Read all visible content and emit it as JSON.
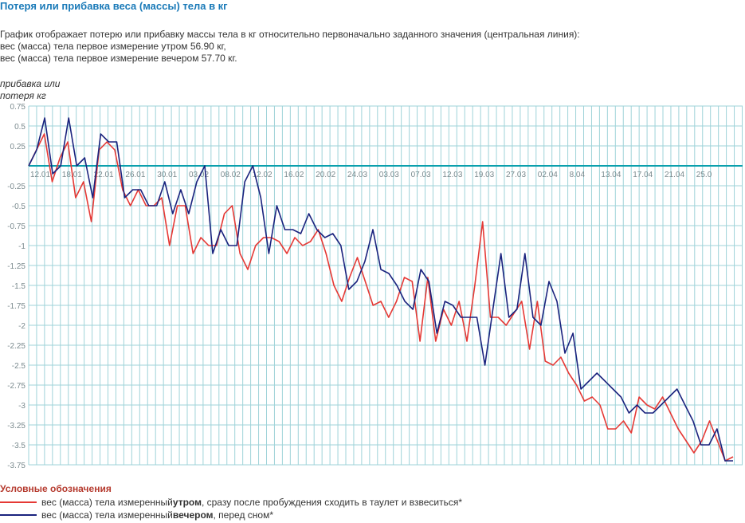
{
  "header": {
    "title": "Потеря или прибавка веса (массы) тела в кг",
    "description": [
      "График отображает потерю или прибавку массы тела в кг относительно первоначально заданного значения (центральная линия):",
      "вес (масса) тела первое измерение утром 56.90 кг,",
      "вес (масса) тела первое измерение вечером 57.70 кг."
    ],
    "y_axis_label_line1": "прибавка или",
    "y_axis_label_line2": "потеря кг"
  },
  "legend": {
    "title": "Условные обозначения",
    "morning": {
      "pre": "вес (масса) тела измеренный ",
      "bold": "утром",
      "post": ", сразу после пробуждения сходить в таулет и взвеситься*",
      "color": "#e53935"
    },
    "evening": {
      "pre": "вес (масса) тела измеренный ",
      "bold": "вечером",
      "post": ", перед сном*",
      "color": "#1a237e"
    }
  },
  "chart_data": {
    "type": "line",
    "ylim": [
      -3.75,
      0.75
    ],
    "y_ticks": [
      "0.75",
      "0.5",
      "0.25",
      "",
      "-0.25",
      "-0.5",
      "-0.75",
      "-1",
      "-1.25",
      "-1.5",
      "-1.75",
      "-2",
      "-2.25",
      "-2.5",
      "-2.75",
      "-3",
      "-3.25",
      "-3.5",
      "-3.75"
    ],
    "x_ticks": [
      "12.01",
      "18.01",
      "22.01",
      "26.01",
      "30.01",
      "03.02",
      "08.02",
      "12.02",
      "16.02",
      "20.02",
      "24.03",
      "03.03",
      "07.03",
      "12.03",
      "19.03",
      "27.03",
      "02.04",
      "8.04",
      "13.04",
      "17.04",
      "21.04",
      "25.0"
    ],
    "grid": true,
    "colors": {
      "grid": "#9fd3d9",
      "zero_line": "#0aa0ad",
      "axis_text": "#7a8a8e"
    },
    "series": [
      {
        "name": "утром",
        "color": "#e53935",
        "values": [
          0,
          0.2,
          0.4,
          -0.2,
          0.1,
          0.3,
          -0.4,
          -0.2,
          -0.7,
          0.2,
          0.3,
          0.2,
          -0.3,
          -0.5,
          -0.3,
          -0.5,
          -0.5,
          -0.4,
          -1.0,
          -0.5,
          -0.5,
          -1.1,
          -0.9,
          -1.0,
          -1.0,
          -0.6,
          -0.5,
          -1.1,
          -1.3,
          -1.0,
          -0.9,
          -0.9,
          -0.95,
          -1.1,
          -0.9,
          -1.0,
          -0.95,
          -0.8,
          -1.1,
          -1.5,
          -1.7,
          -1.4,
          -1.15,
          -1.45,
          -1.75,
          -1.7,
          -1.9,
          -1.7,
          -1.4,
          -1.45,
          -2.2,
          -1.4,
          -2.2,
          -1.8,
          -2.0,
          -1.7,
          -2.2,
          -1.5,
          -0.7,
          -1.9,
          -1.9,
          -2.0,
          -1.85,
          -1.7,
          -2.3,
          -1.7,
          -2.45,
          -2.5,
          -2.4,
          -2.6,
          -2.75,
          -2.95,
          -2.9,
          -3.0,
          -3.3,
          -3.3,
          -3.2,
          -3.35,
          -2.9,
          -3.0,
          -3.05,
          -2.9,
          -3.1,
          -3.3,
          -3.45,
          -3.6,
          -3.45,
          -3.2,
          -3.45,
          -3.7,
          -3.65
        ]
      },
      {
        "name": "вечером",
        "color": "#1a237e",
        "values": [
          0,
          0.2,
          0.6,
          -0.1,
          0.0,
          0.6,
          0.0,
          0.1,
          -0.4,
          0.4,
          0.3,
          0.3,
          -0.4,
          -0.3,
          -0.3,
          -0.5,
          -0.5,
          -0.2,
          -0.6,
          -0.3,
          -0.6,
          -0.2,
          0.0,
          -1.1,
          -0.8,
          -1.0,
          -1.0,
          -0.2,
          0.0,
          -0.4,
          -1.1,
          -0.5,
          -0.8,
          -0.8,
          -0.85,
          -0.6,
          -0.8,
          -0.9,
          -0.85,
          -1.0,
          -1.55,
          -1.45,
          -1.2,
          -0.8,
          -1.3,
          -1.35,
          -1.5,
          -1.7,
          -1.8,
          -1.3,
          -1.45,
          -2.1,
          -1.7,
          -1.75,
          -1.9,
          -1.9,
          -1.9,
          -2.5,
          -1.8,
          -1.1,
          -1.9,
          -1.8,
          -1.1,
          -1.9,
          -2.0,
          -1.45,
          -1.7,
          -2.35,
          -2.1,
          -2.8,
          -2.7,
          -2.6,
          -2.7,
          -2.8,
          -2.9,
          -3.1,
          -3.0,
          -3.1,
          -3.1,
          -3.0,
          -2.9,
          -2.8,
          -3.0,
          -3.2,
          -3.5,
          -3.5,
          -3.3,
          -3.7,
          -3.7
        ]
      }
    ]
  }
}
